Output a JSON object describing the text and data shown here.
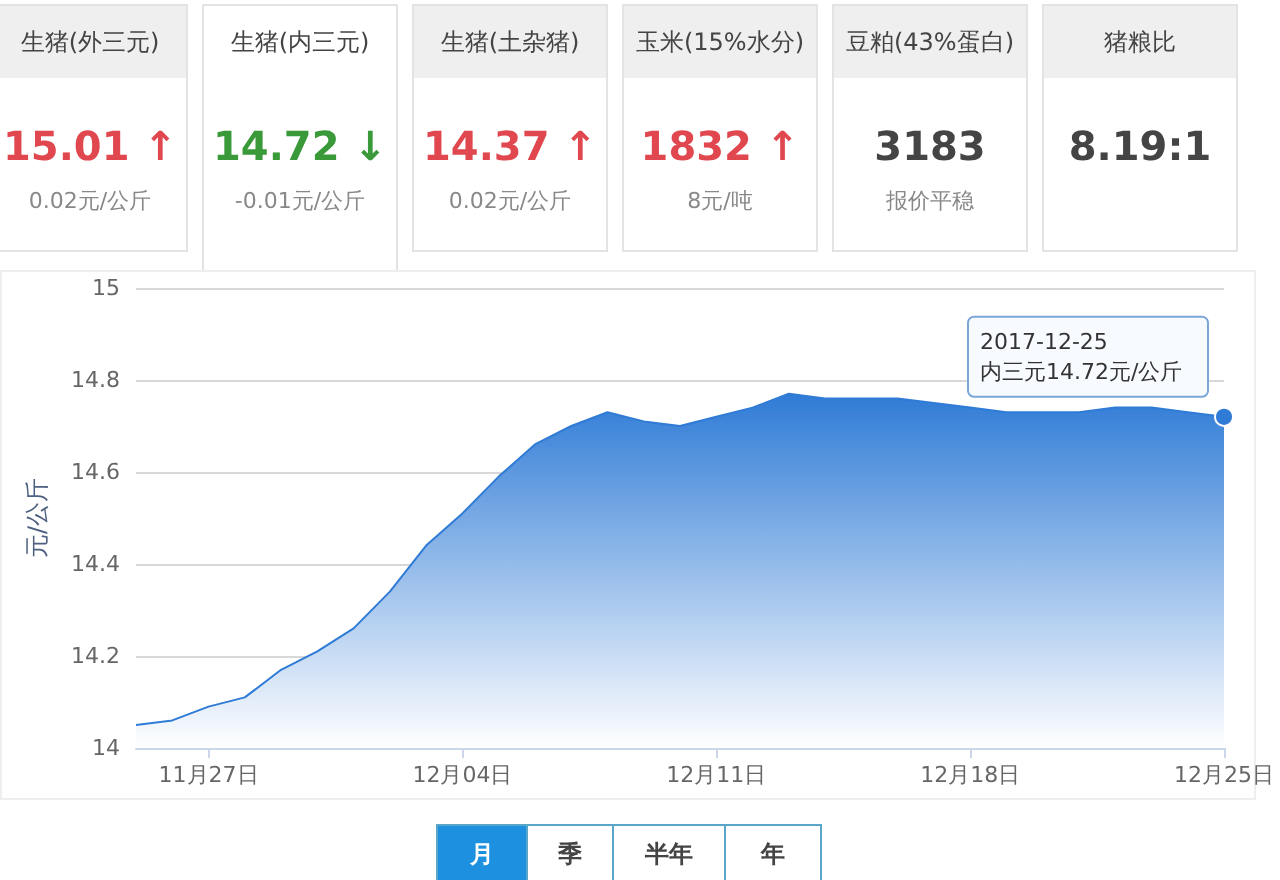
{
  "chart_data": [
    {
      "type": "other",
      "categories": [
        "生猪(外三元)",
        "生猪(内三元)",
        "生猪(土杂猪)",
        "玉米(15%水分)",
        "豆粕(43%蛋白)",
        "猪粮比"
      ],
      "value_labels": [
        "15.01 ↑",
        "14.72 ↓",
        "14.37 ↑",
        "1832 ↑",
        "3183",
        "8.19:1"
      ],
      "annotations": [
        "0.02元/公斤",
        "-0.01元/公斤",
        "0.02元/公斤",
        "8元/吨",
        "报价平稳",
        null
      ]
    },
    {
      "type": "area",
      "ylabel": "元/公斤",
      "categories": [
        null,
        null,
        "11月27日",
        null,
        null,
        null,
        null,
        null,
        null,
        "12月04日",
        null,
        null,
        null,
        null,
        null,
        null,
        "12月11日",
        null,
        null,
        null,
        null,
        null,
        null,
        "12月18日",
        null,
        null,
        null,
        null,
        null,
        null,
        "12月25日"
      ],
      "series": [
        {
          "color": "#2f7bd6",
          "values": [
            14.05,
            14.06,
            14.09,
            14.11,
            14.17,
            14.21,
            14.26,
            14.34,
            14.44,
            14.51,
            14.59,
            14.66,
            14.7,
            14.73,
            14.71,
            14.7,
            14.72,
            14.74,
            14.77,
            14.76,
            14.76,
            14.76,
            14.75,
            14.74,
            14.73,
            14.73,
            14.73,
            14.74,
            14.74,
            14.73,
            14.72
          ]
        }
      ],
      "ylim": [
        14,
        15
      ],
      "yticks": [
        14,
        14.2,
        14.4,
        14.6,
        14.8,
        15
      ],
      "grid": "y",
      "marker": "none",
      "annotations": [
        {
          "text": "2017-12-25\n内三元14.72元/公斤",
          "x": "12月25日",
          "y": 14.72
        },
        "月",
        "季",
        "半年",
        "年"
      ]
    }
  ]
}
